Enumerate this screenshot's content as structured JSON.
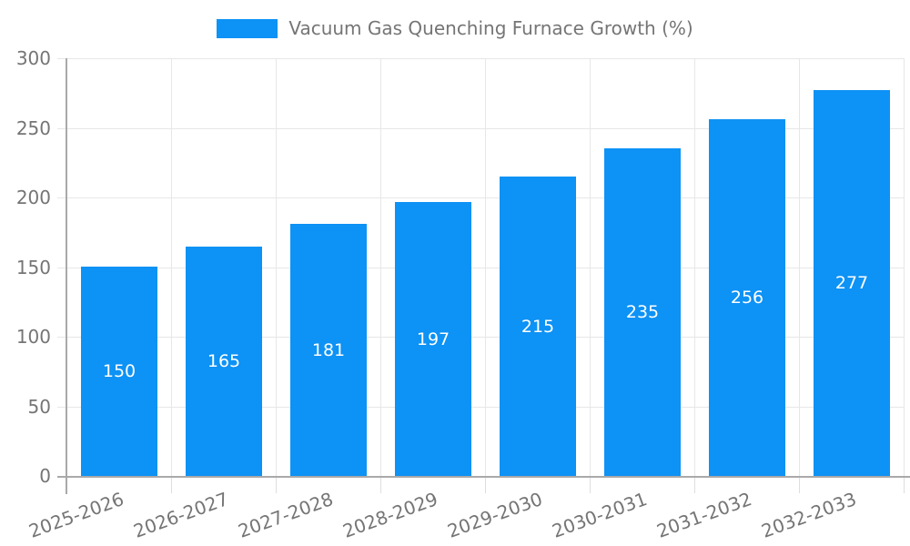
{
  "chart_data": {
    "type": "bar",
    "title": "",
    "legend": {
      "position": "top",
      "label": "Vacuum Gas Quenching Furnace Growth (%)"
    },
    "categories": [
      "2025-2026",
      "2026-2027",
      "2027-2028",
      "2028-2029",
      "2029-2030",
      "2030-2031",
      "2031-2032",
      "2032-2033"
    ],
    "series": [
      {
        "name": "Vacuum Gas Quenching Furnace Growth (%)",
        "values": [
          150,
          165,
          181,
          197,
          215,
          235,
          256,
          277
        ]
      }
    ],
    "value_labels_shown": true,
    "xlabel": "",
    "ylabel": "",
    "ylim": [
      0,
      300
    ],
    "yticks": [
      0,
      50,
      100,
      150,
      200,
      250,
      300
    ],
    "grid": true,
    "x_tick_rotation_deg": -20,
    "colors": {
      "bar": "#0d92f5",
      "grid": "#e7e7e7",
      "axis": "#a9a9a9",
      "minor_tick": "#dedede",
      "tick_text": "#757575",
      "legend_text": "#757575",
      "value_label_text": "#ffffff",
      "background": "#ffffff"
    }
  }
}
